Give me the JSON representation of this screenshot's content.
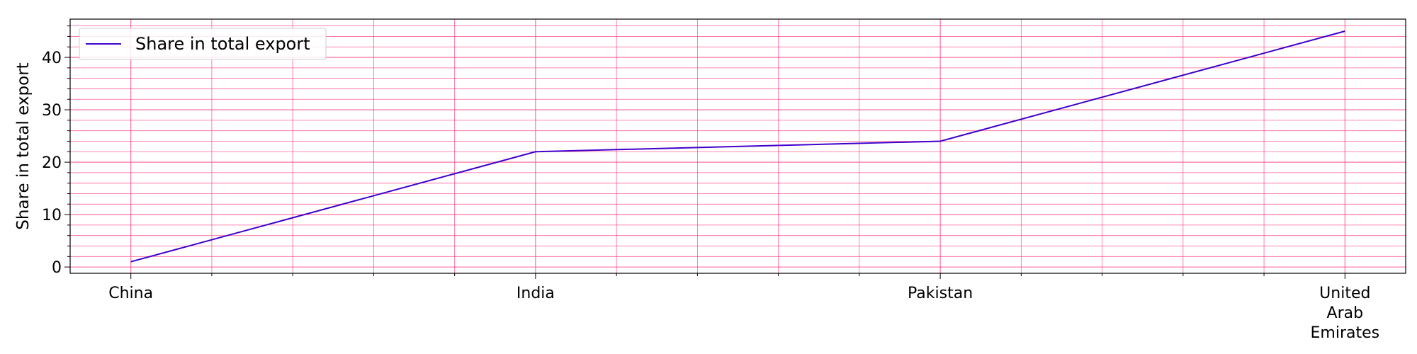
{
  "chart_data": {
    "type": "line",
    "title": "",
    "xlabel": "",
    "ylabel": "Share in total export",
    "categories": [
      "China",
      "India",
      "Pakistan",
      "United Arab Emirates"
    ],
    "category_lines": [
      [
        "China"
      ],
      [
        "India"
      ],
      [
        "Pakistan"
      ],
      [
        "United",
        "Arab",
        "Emirates"
      ]
    ],
    "series": [
      {
        "name": "Share in total export",
        "values": [
          1,
          22,
          24,
          45
        ],
        "color": "#3f00cc"
      }
    ],
    "ylim": [
      -1.2,
      47.3
    ],
    "xlim": [
      -0.15,
      3.15
    ],
    "yticks": [
      0,
      10,
      20,
      30,
      40
    ],
    "yticks_minor_step": 2,
    "xticks_minor_step": 0.2,
    "grid": {
      "major": true,
      "minor": true,
      "color": "#ff4f88"
    },
    "legend": "top-left"
  }
}
